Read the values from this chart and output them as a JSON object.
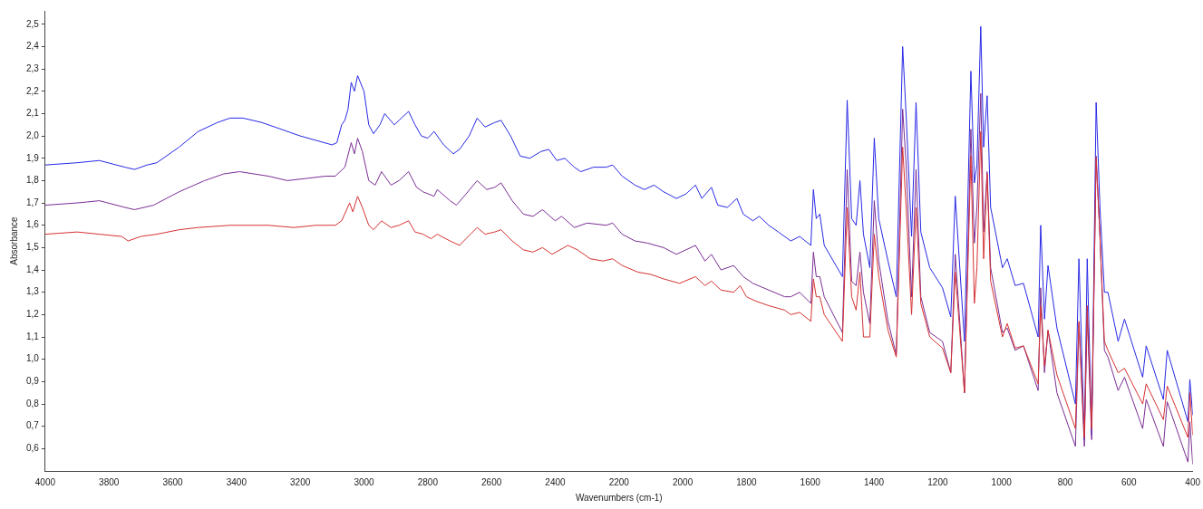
{
  "chart_data": {
    "type": "line",
    "xlabel": "Wavenumbers (cm-1)",
    "ylabel": "Absorbance",
    "legend": false,
    "marker": "none",
    "xlim": [
      4000,
      400
    ],
    "xticks": [
      4000,
      3800,
      3600,
      3400,
      3200,
      3000,
      2800,
      2600,
      2400,
      2200,
      2000,
      1800,
      1600,
      1400,
      1200,
      1000,
      800,
      600,
      400
    ],
    "ylim": [
      0.5,
      2.56
    ],
    "yticks": [
      {
        "value": 0.6,
        "label": "0,6"
      },
      {
        "value": 0.7,
        "label": "0,7"
      },
      {
        "value": 0.8,
        "label": "0,8"
      },
      {
        "value": 0.9,
        "label": "0,9"
      },
      {
        "value": 1.0,
        "label": "1,0"
      },
      {
        "value": 1.1,
        "label": "1,1"
      },
      {
        "value": 1.2,
        "label": "1,2"
      },
      {
        "value": 1.3,
        "label": "1,3"
      },
      {
        "value": 1.4,
        "label": "1,4"
      },
      {
        "value": 1.5,
        "label": "1,5"
      },
      {
        "value": 1.6,
        "label": "1,6"
      },
      {
        "value": 1.7,
        "label": "1,7"
      },
      {
        "value": 1.8,
        "label": "1,8"
      },
      {
        "value": 1.9,
        "label": "1,9"
      },
      {
        "value": 2.0,
        "label": "2,0"
      },
      {
        "value": 2.1,
        "label": "2,1"
      },
      {
        "value": 2.2,
        "label": "2,2"
      },
      {
        "value": 2.3,
        "label": "2,3"
      },
      {
        "value": 2.4,
        "label": "2,4"
      },
      {
        "value": 2.5,
        "label": "2,5"
      }
    ],
    "series": [
      {
        "color": "#2828e6",
        "x": [
          4000,
          3900,
          3830,
          3750,
          3720,
          3680,
          3650,
          3580,
          3520,
          3460,
          3420,
          3380,
          3320,
          3260,
          3200,
          3150,
          3100,
          3085,
          3070,
          3060,
          3050,
          3040,
          3030,
          3020,
          3000,
          2985,
          2970,
          2950,
          2935,
          2905,
          2890,
          2860,
          2840,
          2820,
          2800,
          2780,
          2750,
          2720,
          2700,
          2670,
          2645,
          2620,
          2590,
          2570,
          2540,
          2510,
          2480,
          2445,
          2420,
          2395,
          2370,
          2340,
          2320,
          2280,
          2240,
          2220,
          2190,
          2150,
          2120,
          2090,
          2060,
          2020,
          1990,
          1960,
          1940,
          1910,
          1890,
          1860,
          1830,
          1810,
          1780,
          1760,
          1730,
          1700,
          1661,
          1633,
          1598,
          1590,
          1581,
          1570,
          1556,
          1499,
          1484,
          1470,
          1456,
          1444,
          1433,
          1413,
          1399,
          1385,
          1356,
          1330,
          1310,
          1299,
          1282,
          1268,
          1253,
          1225,
          1185,
          1159,
          1145,
          1116,
          1096,
          1085,
          1077,
          1065,
          1056,
          1045,
          1034,
          997,
          982,
          957,
          931,
          885,
          877,
          865,
          854,
          826,
          768,
          757,
          740,
          731,
          717,
          703,
          691,
          677,
          666,
          634,
          614,
          557,
          546,
          492,
          480,
          415,
          409,
          400
        ],
        "values": [
          1.87,
          1.88,
          1.89,
          1.86,
          1.85,
          1.87,
          1.88,
          1.95,
          2.02,
          2.06,
          2.08,
          2.08,
          2.06,
          2.03,
          2.0,
          1.98,
          1.96,
          1.97,
          2.05,
          2.07,
          2.12,
          2.24,
          2.2,
          2.27,
          2.2,
          2.05,
          2.01,
          2.05,
          2.1,
          2.05,
          2.07,
          2.11,
          2.05,
          2.0,
          1.99,
          2.02,
          1.96,
          1.92,
          1.94,
          2.0,
          2.08,
          2.04,
          2.06,
          2.07,
          2.0,
          1.91,
          1.9,
          1.93,
          1.94,
          1.89,
          1.9,
          1.86,
          1.84,
          1.86,
          1.86,
          1.87,
          1.82,
          1.78,
          1.76,
          1.78,
          1.75,
          1.72,
          1.74,
          1.78,
          1.72,
          1.77,
          1.69,
          1.68,
          1.72,
          1.65,
          1.62,
          1.64,
          1.6,
          1.57,
          1.53,
          1.55,
          1.51,
          1.76,
          1.63,
          1.65,
          1.51,
          1.37,
          2.16,
          1.63,
          1.6,
          1.8,
          1.56,
          1.41,
          1.99,
          1.63,
          1.44,
          1.28,
          2.4,
          2.09,
          1.55,
          2.15,
          1.57,
          1.41,
          1.32,
          1.19,
          1.73,
          1.08,
          2.29,
          1.79,
          1.87,
          2.49,
          1.95,
          2.18,
          1.68,
          1.41,
          1.45,
          1.33,
          1.34,
          1.1,
          1.6,
          1.18,
          1.42,
          1.14,
          0.8,
          1.45,
          0.64,
          1.45,
          0.66,
          2.15,
          1.68,
          1.3,
          1.3,
          1.08,
          1.18,
          0.92,
          1.06,
          0.82,
          1.04,
          0.72,
          0.91,
          0.75
        ]
      },
      {
        "color": "#7a2e94",
        "x": [
          4000,
          3900,
          3830,
          3750,
          3720,
          3660,
          3580,
          3500,
          3440,
          3390,
          3300,
          3240,
          3180,
          3120,
          3090,
          3060,
          3040,
          3030,
          3020,
          3005,
          2985,
          2965,
          2945,
          2915,
          2890,
          2860,
          2835,
          2815,
          2780,
          2770,
          2730,
          2710,
          2680,
          2645,
          2615,
          2590,
          2570,
          2535,
          2500,
          2470,
          2440,
          2400,
          2380,
          2340,
          2300,
          2240,
          2220,
          2190,
          2150,
          2110,
          2060,
          2020,
          1960,
          1930,
          1910,
          1880,
          1840,
          1810,
          1780,
          1730,
          1680,
          1661,
          1633,
          1598,
          1590,
          1581,
          1570,
          1556,
          1499,
          1484,
          1470,
          1456,
          1444,
          1433,
          1413,
          1399,
          1385,
          1356,
          1330,
          1310,
          1299,
          1282,
          1268,
          1253,
          1225,
          1185,
          1159,
          1145,
          1116,
          1096,
          1085,
          1077,
          1065,
          1056,
          1045,
          1034,
          997,
          982,
          957,
          931,
          885,
          877,
          865,
          854,
          826,
          768,
          757,
          740,
          731,
          717,
          703,
          691,
          677,
          666,
          634,
          614,
          557,
          546,
          492,
          480,
          415,
          409,
          400
        ],
        "values": [
          1.69,
          1.7,
          1.71,
          1.68,
          1.67,
          1.69,
          1.75,
          1.8,
          1.83,
          1.84,
          1.82,
          1.8,
          1.81,
          1.82,
          1.82,
          1.86,
          1.97,
          1.92,
          1.99,
          1.93,
          1.8,
          1.78,
          1.84,
          1.78,
          1.8,
          1.84,
          1.77,
          1.75,
          1.73,
          1.76,
          1.71,
          1.69,
          1.74,
          1.8,
          1.76,
          1.77,
          1.79,
          1.71,
          1.65,
          1.64,
          1.67,
          1.62,
          1.64,
          1.59,
          1.61,
          1.6,
          1.61,
          1.56,
          1.53,
          1.52,
          1.5,
          1.47,
          1.51,
          1.44,
          1.47,
          1.4,
          1.42,
          1.37,
          1.34,
          1.31,
          1.28,
          1.28,
          1.3,
          1.25,
          1.48,
          1.37,
          1.37,
          1.28,
          1.12,
          1.85,
          1.35,
          1.33,
          1.48,
          1.3,
          1.16,
          1.71,
          1.44,
          1.17,
          1.02,
          2.12,
          1.87,
          1.28,
          1.85,
          1.28,
          1.12,
          1.08,
          0.94,
          1.47,
          0.85,
          2.03,
          1.52,
          1.68,
          2.19,
          1.57,
          1.84,
          1.41,
          1.12,
          1.14,
          1.04,
          1.06,
          0.86,
          1.32,
          0.94,
          1.13,
          0.85,
          0.61,
          1.16,
          0.61,
          1.2,
          0.64,
          1.91,
          1.55,
          1.04,
          1.01,
          0.86,
          0.92,
          0.69,
          0.82,
          0.61,
          0.81,
          0.54,
          0.72,
          0.53
        ]
      },
      {
        "color": "#d63232",
        "x": [
          4000,
          3900,
          3830,
          3760,
          3740,
          3700,
          3650,
          3580,
          3520,
          3420,
          3300,
          3220,
          3150,
          3090,
          3070,
          3045,
          3035,
          3020,
          3005,
          2985,
          2970,
          2945,
          2915,
          2890,
          2860,
          2840,
          2815,
          2790,
          2770,
          2730,
          2700,
          2680,
          2645,
          2620,
          2590,
          2570,
          2535,
          2500,
          2470,
          2440,
          2410,
          2360,
          2330,
          2290,
          2250,
          2220,
          2190,
          2140,
          2100,
          2060,
          2010,
          1960,
          1930,
          1910,
          1880,
          1840,
          1820,
          1800,
          1770,
          1730,
          1680,
          1661,
          1633,
          1598,
          1590,
          1581,
          1570,
          1556,
          1499,
          1484,
          1470,
          1456,
          1444,
          1433,
          1413,
          1399,
          1385,
          1356,
          1330,
          1310,
          1299,
          1282,
          1268,
          1253,
          1225,
          1185,
          1159,
          1145,
          1116,
          1096,
          1085,
          1077,
          1065,
          1056,
          1045,
          1034,
          997,
          982,
          957,
          931,
          885,
          877,
          865,
          854,
          826,
          768,
          757,
          740,
          731,
          717,
          703,
          691,
          677,
          666,
          634,
          614,
          557,
          546,
          492,
          480,
          415,
          409,
          400
        ],
        "values": [
          1.56,
          1.57,
          1.56,
          1.55,
          1.53,
          1.55,
          1.56,
          1.58,
          1.59,
          1.6,
          1.6,
          1.59,
          1.6,
          1.6,
          1.62,
          1.7,
          1.66,
          1.73,
          1.68,
          1.6,
          1.58,
          1.62,
          1.59,
          1.6,
          1.62,
          1.57,
          1.56,
          1.54,
          1.56,
          1.53,
          1.51,
          1.54,
          1.59,
          1.56,
          1.57,
          1.58,
          1.53,
          1.49,
          1.48,
          1.5,
          1.47,
          1.51,
          1.49,
          1.45,
          1.44,
          1.45,
          1.42,
          1.39,
          1.38,
          1.36,
          1.34,
          1.37,
          1.33,
          1.35,
          1.31,
          1.3,
          1.33,
          1.28,
          1.26,
          1.24,
          1.22,
          1.2,
          1.21,
          1.17,
          1.36,
          1.28,
          1.28,
          1.2,
          1.08,
          1.68,
          1.28,
          1.22,
          1.39,
          1.1,
          1.1,
          1.56,
          1.37,
          1.13,
          1.01,
          1.95,
          1.68,
          1.2,
          1.68,
          1.25,
          1.1,
          1.05,
          0.94,
          1.39,
          0.85,
          1.91,
          1.25,
          1.41,
          2.02,
          1.45,
          1.83,
          1.35,
          1.1,
          1.16,
          1.05,
          1.06,
          0.89,
          1.24,
          0.97,
          1.13,
          0.93,
          0.69,
          1.17,
          0.65,
          1.24,
          0.69,
          1.9,
          1.55,
          1.08,
          1.04,
          0.94,
          0.96,
          0.8,
          0.89,
          0.73,
          0.88,
          0.65,
          0.85,
          0.66
        ]
      }
    ]
  }
}
